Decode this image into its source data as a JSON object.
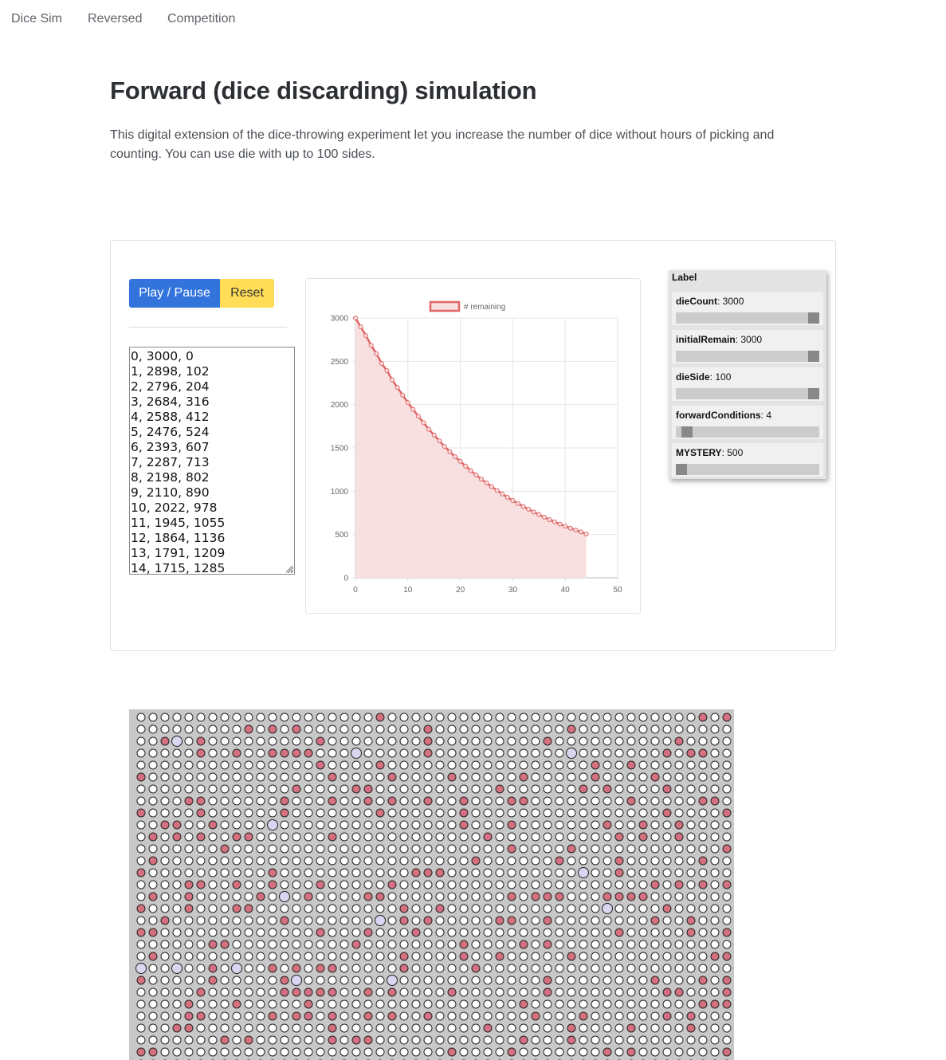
{
  "nav": {
    "items": [
      "Dice Sim",
      "Reversed",
      "Competition"
    ]
  },
  "page": {
    "title": "Forward (dice discarding) simulation",
    "intro": "This digital extension of the dice-throwing experiment let you increase the number of dice without hours of picking and counting. You can use die with up to 100 sides."
  },
  "controls": {
    "play_label": "Play / Pause",
    "reset_label": "Reset",
    "play_color": "#3273dc",
    "reset_color": "#ffdd57"
  },
  "log": {
    "text": "0, 3000, 0\n1, 2898, 102\n2, 2796, 204\n3, 2684, 316\n4, 2588, 412\n5, 2476, 524\n6, 2393, 607\n7, 2287, 713\n8, 2198, 802\n9, 2110, 890\n10, 2022, 978\n11, 1945, 1055\n12, 1864, 1136\n13, 1791, 1209\n14, 1715, 1285"
  },
  "gui": {
    "title": "Label",
    "params": [
      {
        "name": "dieCount",
        "value": "3000",
        "fraction": 1.0
      },
      {
        "name": "initialRemain",
        "value": "3000",
        "fraction": 1.0
      },
      {
        "name": "dieSide",
        "value": "100",
        "fraction": 1.0
      },
      {
        "name": "forwardConditions",
        "value": "4",
        "fraction": 0.04
      },
      {
        "name": "MYSTERY",
        "value": "500",
        "fraction": 0.0
      }
    ]
  },
  "chart_data": {
    "type": "line",
    "series": [
      {
        "name": "# remaining",
        "x": [
          0,
          1,
          2,
          3,
          4,
          5,
          6,
          7,
          8,
          9,
          10,
          11,
          12,
          13,
          14,
          15,
          16,
          17,
          18,
          19,
          20,
          21,
          22,
          23,
          24,
          25,
          26,
          27,
          28,
          29,
          30,
          31,
          32,
          33,
          34,
          35,
          36,
          37,
          38,
          39,
          40,
          41,
          42,
          43,
          44
        ],
        "values": [
          3000,
          2898,
          2796,
          2684,
          2588,
          2476,
          2393,
          2287,
          2198,
          2110,
          2022,
          1945,
          1864,
          1791,
          1715,
          1648,
          1582,
          1516,
          1456,
          1398,
          1345,
          1290,
          1238,
          1188,
          1140,
          1095,
          1052,
          1010,
          968,
          930,
          893,
          858,
          824,
          792,
          760,
          730,
          700,
          672,
          646,
          620,
          596,
          573,
          551,
          530,
          505
        ]
      }
    ],
    "xlim": [
      0,
      50
    ],
    "ylim": [
      0,
      3000
    ],
    "xticks": [
      "0",
      "10",
      "20",
      "30",
      "40",
      "50"
    ],
    "yticks": [
      "0",
      "500",
      "1000",
      "1500",
      "2000",
      "2500",
      "3000"
    ],
    "legend_position": "top",
    "grid": true,
    "line_color": "#e06666",
    "fill_color": "#f8e0e1"
  },
  "dice_grid": {
    "columns": 50,
    "rows": 30,
    "colors": {
      "background": "#c8c8c8",
      "empty": "#ffffff",
      "removed": "#d47080",
      "highlight": "#d8d6f0"
    },
    "highlight_cells": [
      [
        2,
        3
      ],
      [
        3,
        18
      ],
      [
        3,
        36
      ],
      [
        9,
        11
      ],
      [
        13,
        37
      ],
      [
        15,
        12
      ],
      [
        16,
        39
      ],
      [
        17,
        20
      ],
      [
        21,
        0
      ],
      [
        21,
        3
      ],
      [
        21,
        8
      ],
      [
        22,
        13
      ],
      [
        22,
        21
      ]
    ]
  }
}
